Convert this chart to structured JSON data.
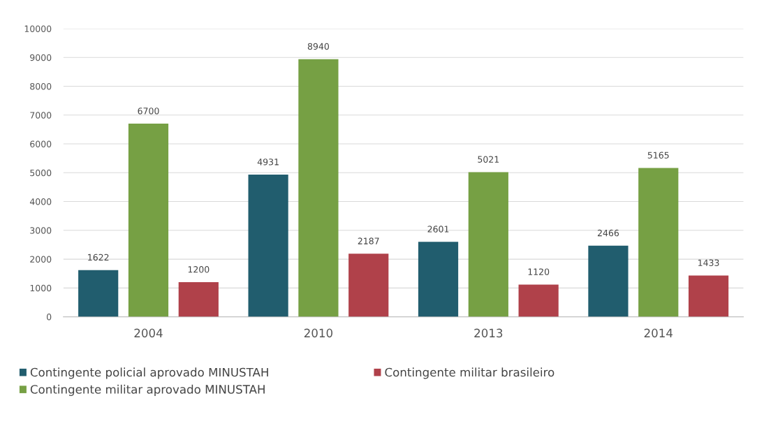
{
  "chart_data": {
    "type": "bar",
    "categories": [
      "2004",
      "2010",
      "2013",
      "2014"
    ],
    "series": [
      {
        "name": "Contingente policial aprovado MINUSTAH",
        "color": "#215d6e",
        "values": [
          1622,
          4931,
          2601,
          2466
        ]
      },
      {
        "name": "Contingente militar aprovado MINUSTAH",
        "color": "#76a044",
        "values": [
          6700,
          8940,
          5021,
          5165
        ]
      },
      {
        "name": "Contingente militar brasileiro",
        "color": "#b0414a",
        "values": [
          1200,
          2187,
          1120,
          1433
        ]
      }
    ],
    "ylim": [
      0,
      10000
    ],
    "yticks": [
      0,
      1000,
      2000,
      3000,
      4000,
      5000,
      6000,
      7000,
      8000,
      9000,
      10000
    ],
    "grid": "y",
    "legend": "bottom",
    "data_labels": true
  }
}
